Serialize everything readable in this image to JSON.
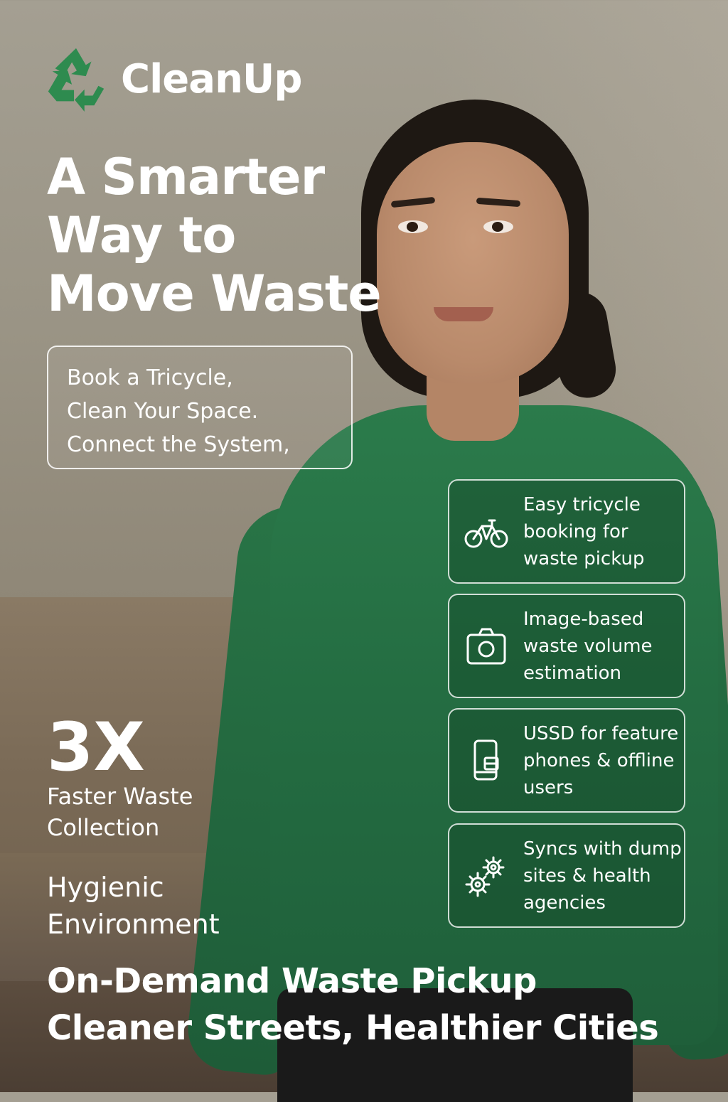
{
  "brand": {
    "name": "CleanUp",
    "logo_icon": "recycle-icon",
    "logo_color": "#2e8b4f"
  },
  "headline": "A Smarter Way to Move Waste",
  "tagline": {
    "lines": [
      "Book a Tricycle,",
      "Clean Your Space.",
      "Connect the System,"
    ]
  },
  "features": [
    {
      "icon": "bicycle-icon",
      "text": "Easy tricycle booking for waste pickup"
    },
    {
      "icon": "camera-icon",
      "text": "Image-based waste volume estimation"
    },
    {
      "icon": "mobile-phone-icon",
      "text": "USSD for feature phones & offline users"
    },
    {
      "icon": "gears-icon",
      "text": "Syncs with dump sites & health agencies"
    }
  ],
  "stat": {
    "value": "3X",
    "label": "Faster Waste Collection"
  },
  "benefit": "Hygienic Environment",
  "footer": {
    "line1": "On-Demand Waste Pickup",
    "line2": "Cleaner Streets, Healthier Cities"
  },
  "colors": {
    "shirt_green": "#246d42",
    "text": "#ffffff"
  }
}
